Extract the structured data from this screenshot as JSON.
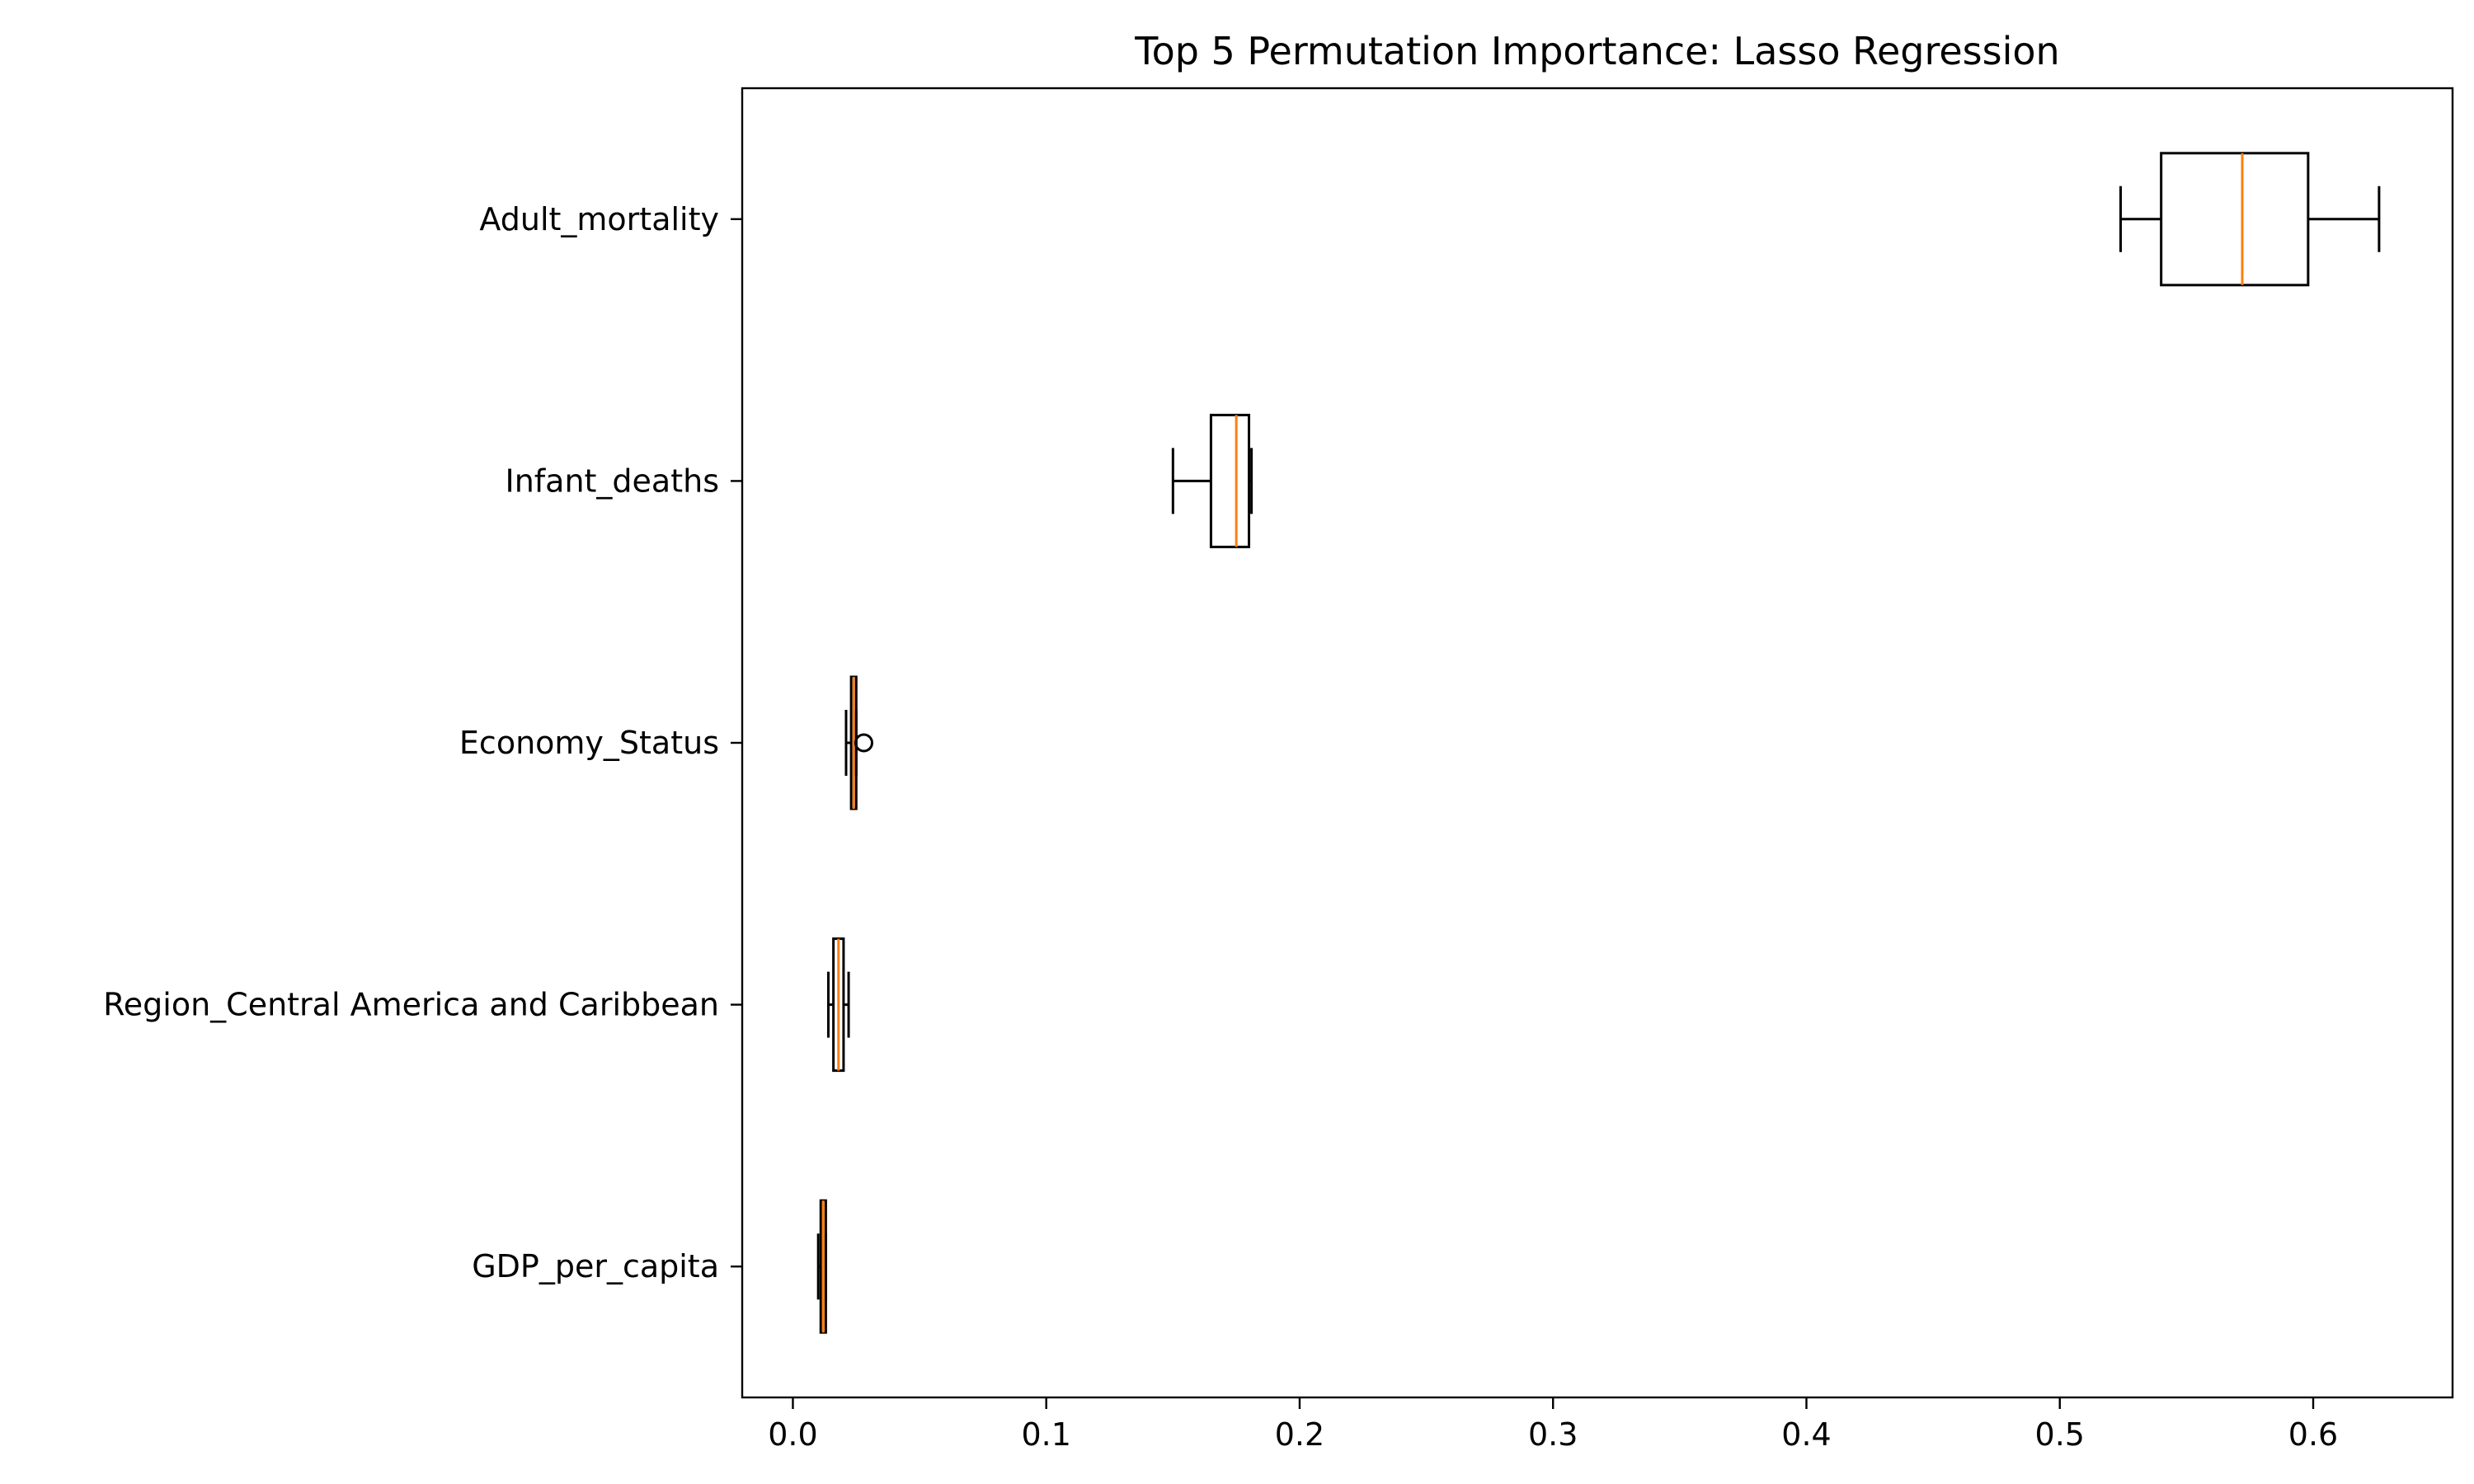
{
  "chart_data": {
    "type": "boxplot",
    "orientation": "horizontal",
    "title": "Top 5 Permutation Importance: Lasso Regression",
    "xlabel": "",
    "ylabel": "",
    "xlim": [
      -0.02,
      0.655
    ],
    "xticks": [
      0.0,
      0.1,
      0.2,
      0.3,
      0.4,
      0.5,
      0.6
    ],
    "xtick_labels": [
      "0.0",
      "0.1",
      "0.2",
      "0.3",
      "0.4",
      "0.5",
      "0.6"
    ],
    "grid": false,
    "categories": [
      "Adult_mortality",
      "Infant_deaths",
      "Economy_Status",
      "Region_Central America and Caribbean",
      "GDP_per_capita"
    ],
    "boxes": [
      {
        "label": "Adult_mortality",
        "whisker_low": 0.524,
        "q1": 0.54,
        "median": 0.572,
        "q3": 0.598,
        "whisker_high": 0.626,
        "outliers": []
      },
      {
        "label": "Infant_deaths",
        "whisker_low": 0.15,
        "q1": 0.165,
        "median": 0.175,
        "q3": 0.18,
        "whisker_high": 0.181,
        "outliers": []
      },
      {
        "label": "Economy_Status",
        "whisker_low": 0.021,
        "q1": 0.023,
        "median": 0.024,
        "q3": 0.025,
        "whisker_high": 0.025,
        "outliers": [
          0.028
        ]
      },
      {
        "label": "Region_Central America and Caribbean",
        "whisker_low": 0.014,
        "q1": 0.016,
        "median": 0.018,
        "q3": 0.02,
        "whisker_high": 0.022,
        "outliers": []
      },
      {
        "label": "GDP_per_capita",
        "whisker_low": 0.01,
        "q1": 0.011,
        "median": 0.012,
        "q3": 0.013,
        "whisker_high": 0.013,
        "outliers": []
      }
    ],
    "colors": {
      "box": "#000000",
      "median": "#ff7f0e",
      "axes": "#000000",
      "background": "#ffffff"
    }
  }
}
